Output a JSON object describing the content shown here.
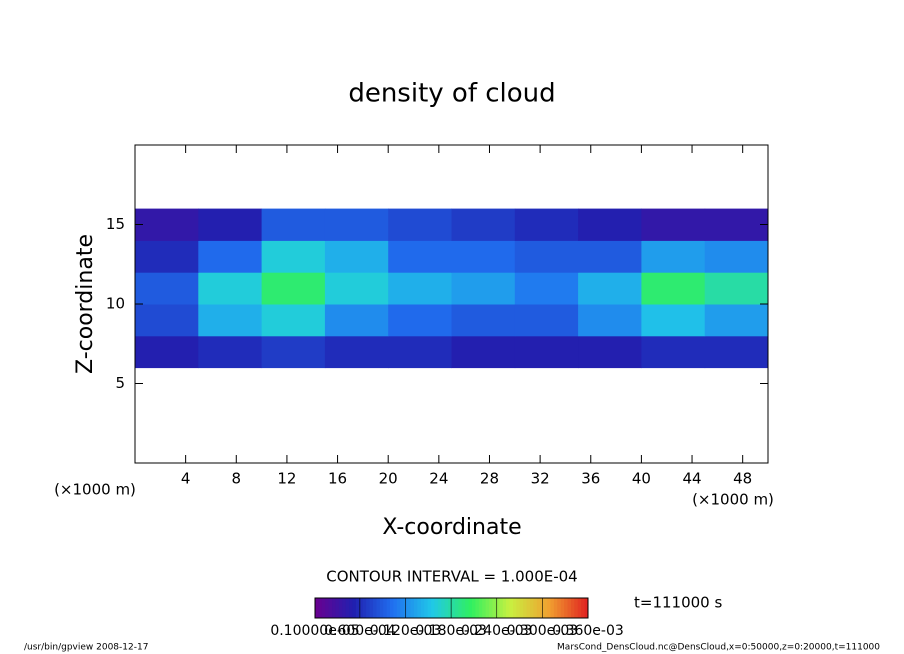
{
  "chart_data": {
    "type": "heatmap",
    "title": "density of cloud",
    "xlabel": "X-coordinate",
    "ylabel": "Z-coordinate",
    "x_unit": "(×1000 m)",
    "y_unit": "(×1000 m)",
    "xlim": [
      0,
      50
    ],
    "ylim": [
      0,
      20
    ],
    "xticks": [
      4,
      8,
      12,
      16,
      20,
      24,
      28,
      32,
      36,
      40,
      44,
      48
    ],
    "yticks": [
      5,
      10,
      15
    ],
    "x": [
      2.5,
      7.5,
      12.5,
      17.5,
      22.5,
      27.5,
      32.5,
      37.5,
      42.5,
      47.5
    ],
    "y": [
      7,
      9,
      11,
      13,
      15
    ],
    "z": [
      [
        5e-05,
        6e-05,
        7e-05,
        6e-05,
        6e-05,
        5e-05,
        5e-05,
        5e-05,
        6e-05,
        6e-05
      ],
      [
        8e-05,
        0.00014,
        0.00016,
        0.00012,
        0.0001,
        9e-05,
        9e-05,
        0.00012,
        0.00015,
        0.00013
      ],
      [
        9e-05,
        0.00016,
        0.0002,
        0.00016,
        0.00014,
        0.00013,
        0.00011,
        0.00014,
        0.0002,
        0.00018
      ],
      [
        6e-05,
        0.0001,
        0.00016,
        0.00014,
        0.0001,
        0.0001,
        9e-05,
        9e-05,
        0.00013,
        0.00012
      ],
      [
        4e-05,
        5e-05,
        9e-05,
        9e-05,
        8e-05,
        7e-05,
        6e-05,
        5e-05,
        4e-05,
        4e-05
      ]
    ],
    "colors": [
      "#6a0090",
      "#2020b0",
      "#2070f0",
      "#20c8e8",
      "#30f060",
      "#c8f040",
      "#f0a030",
      "#e02020"
    ],
    "clim": [
      1e-06,
      0.00036
    ],
    "cticks": [
      {
        "value": 1e-06,
        "label": "0.10000e-05"
      },
      {
        "value": 6e-05,
        "label": "0.600e-04"
      },
      {
        "value": 0.00012,
        "label": "0.120e-03"
      },
      {
        "value": 0.00018,
        "label": "0.180e-03"
      },
      {
        "value": 0.00024,
        "label": "0.240e-03"
      },
      {
        "value": 0.0003,
        "label": "0.300e-03"
      },
      {
        "value": 0.00036,
        "label": "0.360e-03"
      }
    ],
    "contour_interval": "CONTOUR INTERVAL = 1.000E-04",
    "time": "t=111000 s",
    "footer_left": "/usr/bin/gpview  2008-12-17",
    "footer_right": "MarsCond_DensCloud.nc@DensCloud,x=0:50000,z=0:20000,t=111000"
  }
}
